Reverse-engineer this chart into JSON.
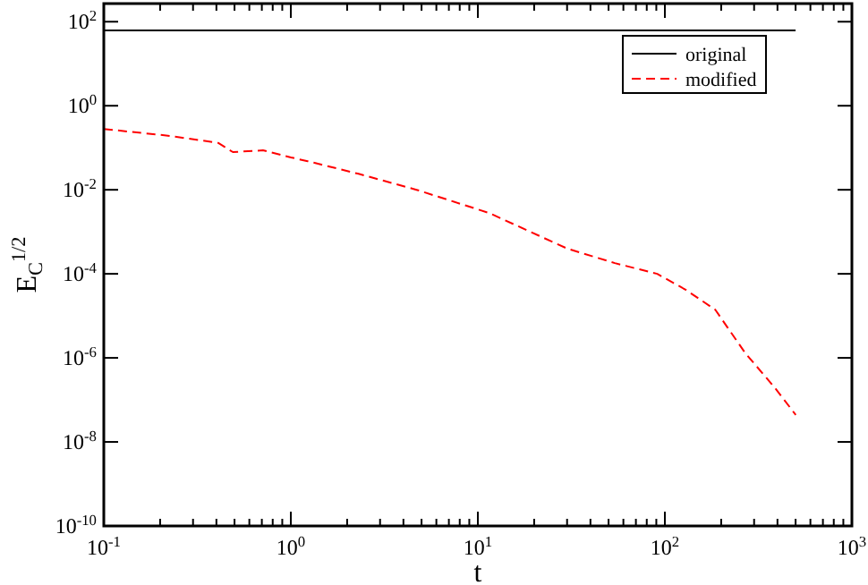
{
  "chart_data": {
    "type": "line",
    "xlabel": "t",
    "ylabel": "E$_{C}$$^{1/2}$",
    "log": "xy",
    "xlim": [
      0.1,
      1000
    ],
    "ylim": [
      1e-10,
      270
    ],
    "xticks": [
      {
        "value": 0.1,
        "label": "10$^{-1}$"
      },
      {
        "value": 0.2,
        "label": null
      },
      {
        "value": 0.3,
        "label": null
      },
      {
        "value": 0.4,
        "label": null
      },
      {
        "value": 0.5,
        "label": null
      },
      {
        "value": 0.6,
        "label": null
      },
      {
        "value": 0.7,
        "label": null
      },
      {
        "value": 0.8,
        "label": null
      },
      {
        "value": 0.9,
        "label": null
      },
      {
        "value": 1,
        "label": "10$^{0}$"
      },
      {
        "value": 2,
        "label": null
      },
      {
        "value": 3,
        "label": null
      },
      {
        "value": 4,
        "label": null
      },
      {
        "value": 5,
        "label": null
      },
      {
        "value": 6,
        "label": null
      },
      {
        "value": 7,
        "label": null
      },
      {
        "value": 8,
        "label": null
      },
      {
        "value": 9,
        "label": null
      },
      {
        "value": 10,
        "label": "10$^{1}$"
      },
      {
        "value": 20,
        "label": null
      },
      {
        "value": 30,
        "label": null
      },
      {
        "value": 40,
        "label": null
      },
      {
        "value": 50,
        "label": null
      },
      {
        "value": 60,
        "label": null
      },
      {
        "value": 70,
        "label": null
      },
      {
        "value": 80,
        "label": null
      },
      {
        "value": 90,
        "label": null
      },
      {
        "value": 100,
        "label": "10$^{2}$"
      },
      {
        "value": 200,
        "label": null
      },
      {
        "value": 300,
        "label": null
      },
      {
        "value": 400,
        "label": null
      },
      {
        "value": 500,
        "label": null
      },
      {
        "value": 600,
        "label": null
      },
      {
        "value": 700,
        "label": null
      },
      {
        "value": 800,
        "label": null
      },
      {
        "value": 900,
        "label": null
      },
      {
        "value": 1000,
        "label": "10$^{3}$"
      }
    ],
    "yticks": [
      {
        "value": 1e-10,
        "label": "10$^{-10}$"
      },
      {
        "value": 1e-08,
        "label": "10$^{-8}$"
      },
      {
        "value": 1e-06,
        "label": "10$^{-6}$"
      },
      {
        "value": 0.0001,
        "label": "10$^{-4}$"
      },
      {
        "value": 0.01,
        "label": "10$^{-2}$"
      },
      {
        "value": 1,
        "label": "10$^{0}$"
      },
      {
        "value": 100,
        "label": "10$^{2}$"
      }
    ],
    "legend": "top right",
    "grid": false,
    "series": [
      {
        "name": "original",
        "color": "#000000",
        "line_style": "solid",
        "x": [
          0.1,
          500
        ],
        "values": [
          62,
          62
        ]
      },
      {
        "name": "modified",
        "color": "#ff0000",
        "line_style": "dashed",
        "x": [
          0.1,
          0.23,
          0.41,
          0.49,
          0.71,
          1.0,
          1.23,
          2.3,
          4.7,
          11.5,
          30,
          54,
          91,
          129,
          186,
          269,
          389,
          501
        ],
        "values": [
          0.28,
          0.19,
          0.13,
          0.079,
          0.087,
          0.059,
          0.048,
          0.024,
          0.01,
          0.0028,
          0.0004,
          0.00018,
          0.0001,
          4.2e-05,
          1.4e-05,
          1.3e-06,
          1.9e-07,
          4.4e-08
        ]
      }
    ]
  }
}
